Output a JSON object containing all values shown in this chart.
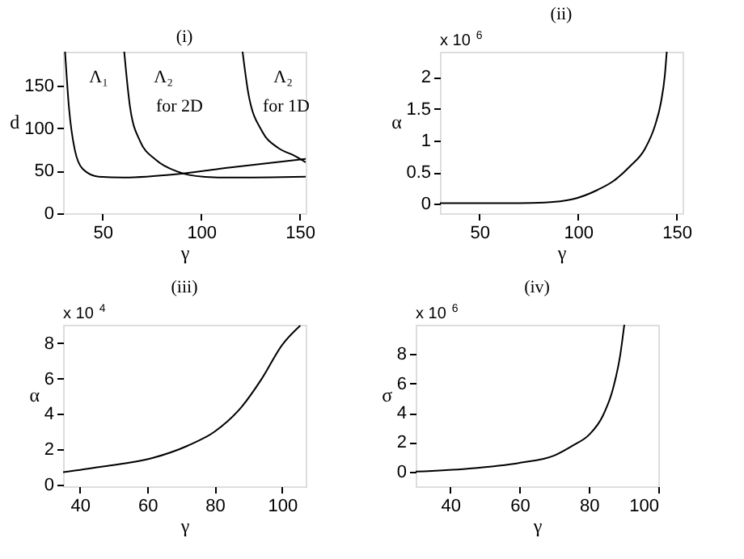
{
  "chart_data": [
    {
      "type": "line",
      "title": "(i)",
      "xlabel": "γ",
      "ylabel": "d",
      "xlim": [
        30,
        153
      ],
      "ylim": [
        0,
        190
      ],
      "xticks": [
        50,
        100,
        150
      ],
      "yticks": [
        0,
        50,
        100,
        150
      ],
      "grid": false,
      "series": [
        {
          "color": "#000000",
          "x": [
            31,
            33,
            36,
            40,
            48,
            61,
            88,
            115,
            153
          ],
          "values": [
            190,
            124,
            74,
            52,
            43,
            42,
            46,
            54,
            64
          ]
        },
        {
          "color": "#000000",
          "x": [
            61,
            64,
            69,
            77,
            88,
            101,
            115,
            153
          ],
          "values": [
            190,
            124,
            85,
            63,
            49,
            43,
            42,
            43
          ]
        },
        {
          "color": "#000000",
          "x": [
            121,
            124,
            131,
            139,
            147,
            153
          ],
          "values": [
            190,
            140,
            96,
            77,
            68,
            60
          ]
        }
      ],
      "annotations": [
        "Λ₁",
        "Λ₂",
        "for 2D",
        "Λ₂",
        "for 1D"
      ]
    },
    {
      "type": "line",
      "title": "(ii)",
      "xlabel": "γ",
      "ylabel": "α",
      "xlim": [
        30,
        153
      ],
      "ylim": [
        -0.15,
        2.4
      ],
      "xticks": [
        50,
        100,
        150
      ],
      "yticks": [
        0,
        0.5,
        1,
        1.5,
        2
      ],
      "grid": false,
      "series": [
        {
          "color": "#000000",
          "x": [
            30,
            50,
            70,
            83,
            97,
            110,
            118,
            126,
            134,
            139,
            142,
            144,
            145
          ],
          "values": [
            0.01,
            0.01,
            0.01,
            0.02,
            0.07,
            0.22,
            0.36,
            0.58,
            0.87,
            1.23,
            1.59,
            2.02,
            2.4
          ]
        }
      ],
      "annotations": [
        "x 10$^{6}$"
      ]
    },
    {
      "type": "line",
      "title": "(iii)",
      "xlabel": "γ",
      "ylabel": "α",
      "xlim": [
        35,
        107
      ],
      "ylim": [
        -0.1,
        9.05
      ],
      "xticks": [
        40,
        60,
        80,
        100
      ],
      "yticks": [
        0,
        2,
        4,
        6,
        8
      ],
      "grid": false,
      "series": [
        {
          "color": "#000000",
          "x": [
            35,
            46,
            61.5,
            72,
            80,
            88,
            94,
            100,
            105.4
          ],
          "values": [
            0.7,
            1.0,
            1.5,
            2.2,
            3.0,
            4.4,
            6.0,
            7.9,
            9.0
          ]
        }
      ],
      "annotations": [
        "x 10$^{4}$"
      ]
    },
    {
      "type": "line",
      "title": "(iv)",
      "xlabel": "γ",
      "ylabel": "σ",
      "xlim": [
        30,
        100
      ],
      "ylim": [
        -1,
        10
      ],
      "xticks": [
        40,
        60,
        80,
        100
      ],
      "yticks": [
        0,
        2,
        4,
        6,
        8
      ],
      "grid": false,
      "series": [
        {
          "color": "#000000",
          "x": [
            30,
            45,
            60,
            70,
            75.5,
            80,
            84,
            87,
            89,
            90.2
          ],
          "values": [
            0,
            0.2,
            0.6,
            1.1,
            1.8,
            2.5,
            3.8,
            5.7,
            7.9,
            10.0
          ]
        }
      ],
      "annotations": [
        "x 10$^{6}$"
      ]
    }
  ]
}
